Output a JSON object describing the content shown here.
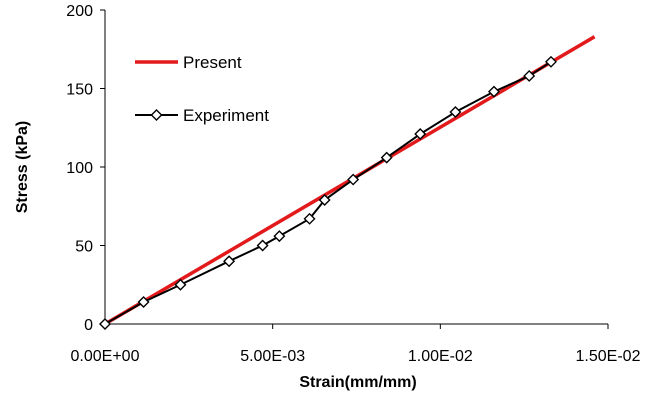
{
  "chart_data": {
    "type": "line",
    "xlabel": "Strain(mm/mm)",
    "ylabel": "Stress (kPa)",
    "xlim": [
      0,
      0.015
    ],
    "ylim": [
      0,
      200
    ],
    "x_ticks": [
      0,
      0.005,
      0.01,
      0.015
    ],
    "x_tick_labels": [
      "0.00E+00",
      "5.00E-03",
      "1.00E-02",
      "1.50E-02"
    ],
    "y_ticks": [
      0,
      50,
      100,
      150,
      200
    ],
    "y_tick_labels": [
      "0",
      "50",
      "100",
      "150",
      "200"
    ],
    "grid": false,
    "legend_position": "top-left",
    "series": [
      {
        "name": "Present",
        "color": "#e31a1c",
        "marker": "none",
        "x": [
          0,
          0.0146
        ],
        "y": [
          0,
          183
        ]
      },
      {
        "name": "Experiment",
        "color": "#000000",
        "marker": "diamond",
        "x": [
          0,
          0.00115,
          0.00225,
          0.0037,
          0.0047,
          0.0052,
          0.0061,
          0.00655,
          0.0074,
          0.0084,
          0.0094,
          0.01045,
          0.0116,
          0.01265,
          0.0133
        ],
        "y": [
          0,
          14,
          25,
          40,
          50,
          56,
          67,
          79,
          92,
          106,
          121,
          135,
          148,
          158,
          167
        ]
      }
    ]
  }
}
